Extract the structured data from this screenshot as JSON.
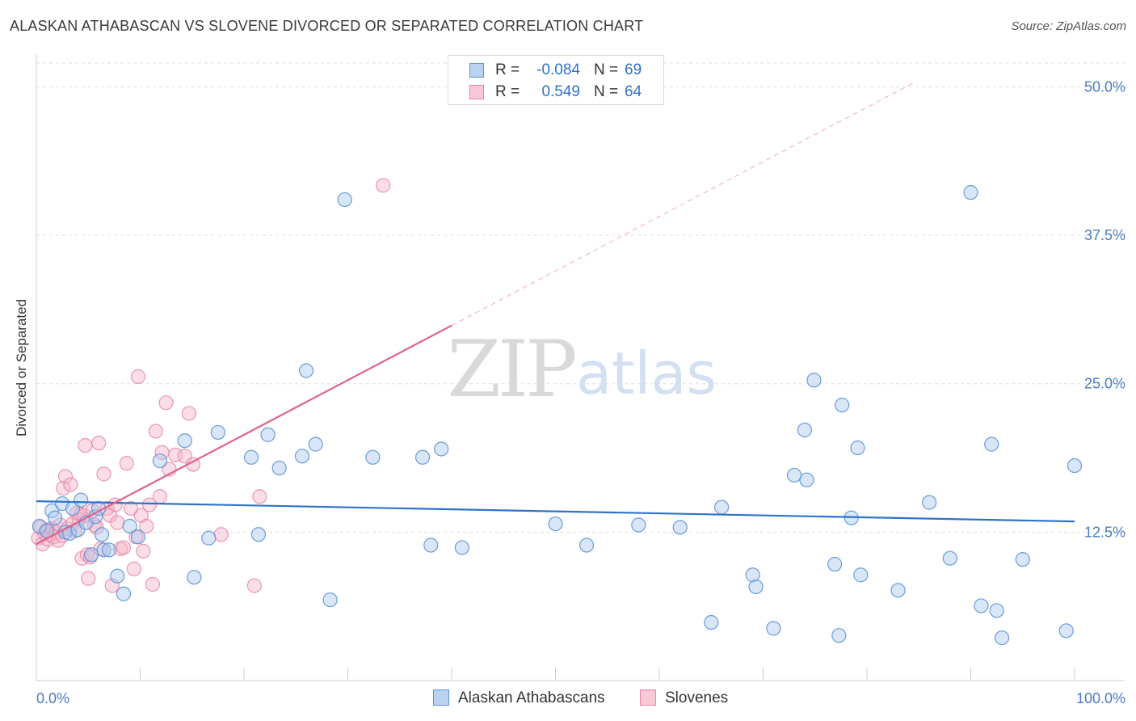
{
  "header": {
    "title": "ALASKAN ATHABASCAN VS SLOVENE DIVORCED OR SEPARATED CORRELATION CHART",
    "source": "Source: ZipAtlas.com"
  },
  "watermark": {
    "zip": "ZIP",
    "atlas": "atlas"
  },
  "colors": {
    "blue_fill": "#a9c7ee",
    "blue_stroke": "#5b93d6",
    "blue_line": "#2f72c8",
    "pink_fill": "#f4b6c9",
    "pink_stroke": "#e886a6",
    "pink_line": "#e0628d",
    "tick_text": "#4a7cc4",
    "grid": "#dddddd"
  },
  "stats": {
    "rows": [
      {
        "series": "Alaskan Athabascans",
        "r_label": "R =",
        "r_value": "-0.084",
        "n_label": "N =",
        "n_value": "69"
      },
      {
        "series": "Slovenes",
        "r_label": "R =",
        "r_value": "0.549",
        "n_label": "N =",
        "n_value": "64"
      }
    ]
  },
  "legend": {
    "items": [
      "Alaskan Athabascans",
      "Slovenes"
    ]
  },
  "chart_data": {
    "type": "scatter",
    "title": "ALASKAN ATHABASCAN VS SLOVENE DIVORCED OR SEPARATED CORRELATION CHART",
    "xlabel": "",
    "ylabel": "Divorced or Separated",
    "xlim": [
      0,
      100
    ],
    "ylim": [
      0,
      52
    ],
    "x_tick_labels": [
      "0.0%",
      "100.0%"
    ],
    "y_ticks": [
      12.5,
      25.0,
      37.5,
      50.0
    ],
    "y_tick_labels": [
      "12.5%",
      "25.0%",
      "37.5%",
      "50.0%"
    ],
    "grid": true,
    "legend_position": "bottom-center",
    "series": [
      {
        "name": "Alaskan Athabascans",
        "color": "#a9c7ee",
        "trend": {
          "x": [
            0,
            100
          ],
          "y": [
            15.1,
            13.4
          ]
        },
        "points": [
          [
            0.3,
            13.0
          ],
          [
            1.0,
            12.6
          ],
          [
            1.5,
            14.3
          ],
          [
            1.8,
            13.7
          ],
          [
            2.5,
            14.9
          ],
          [
            2.8,
            12.5
          ],
          [
            3.2,
            12.4
          ],
          [
            3.5,
            14.5
          ],
          [
            4.0,
            12.7
          ],
          [
            4.3,
            15.2
          ],
          [
            4.8,
            13.3
          ],
          [
            5.3,
            10.6
          ],
          [
            5.7,
            13.8
          ],
          [
            6.0,
            14.5
          ],
          [
            6.3,
            12.3
          ],
          [
            6.5,
            11.0
          ],
          [
            7.0,
            11.0
          ],
          [
            7.8,
            8.8
          ],
          [
            8.4,
            7.3
          ],
          [
            9.0,
            13.0
          ],
          [
            9.8,
            12.1
          ],
          [
            11.9,
            18.5
          ],
          [
            14.3,
            20.2
          ],
          [
            15.2,
            8.7
          ],
          [
            16.6,
            12.0
          ],
          [
            17.5,
            20.9
          ],
          [
            20.7,
            18.8
          ],
          [
            21.4,
            12.3
          ],
          [
            22.3,
            20.7
          ],
          [
            23.4,
            17.9
          ],
          [
            25.6,
            18.9
          ],
          [
            26.0,
            26.1
          ],
          [
            26.9,
            19.9
          ],
          [
            28.3,
            6.8
          ],
          [
            29.7,
            40.5
          ],
          [
            32.4,
            18.8
          ],
          [
            37.2,
            18.8
          ],
          [
            38.0,
            11.4
          ],
          [
            39.0,
            19.5
          ],
          [
            41.0,
            11.2
          ],
          [
            50.0,
            13.2
          ],
          [
            53.0,
            11.4
          ],
          [
            58.0,
            13.1
          ],
          [
            62.0,
            12.9
          ],
          [
            65.0,
            4.9
          ],
          [
            66.0,
            14.6
          ],
          [
            69.0,
            8.9
          ],
          [
            69.3,
            7.9
          ],
          [
            71.0,
            4.4
          ],
          [
            73.0,
            17.3
          ],
          [
            74.0,
            21.1
          ],
          [
            74.2,
            16.9
          ],
          [
            74.9,
            25.3
          ],
          [
            76.9,
            9.8
          ],
          [
            77.3,
            3.8
          ],
          [
            77.6,
            23.2
          ],
          [
            78.5,
            13.7
          ],
          [
            79.1,
            19.6
          ],
          [
            79.4,
            8.9
          ],
          [
            83.0,
            7.6
          ],
          [
            86.0,
            15.0
          ],
          [
            88.0,
            10.3
          ],
          [
            90.0,
            41.1
          ],
          [
            91.0,
            6.3
          ],
          [
            92.0,
            19.9
          ],
          [
            92.5,
            5.9
          ],
          [
            93.0,
            3.6
          ],
          [
            95.0,
            10.2
          ],
          [
            99.2,
            4.2
          ],
          [
            100,
            18.1
          ]
        ]
      },
      {
        "name": "Slovenes",
        "color": "#f4b6c9",
        "trend": {
          "x": [
            0,
            40
          ],
          "y": [
            11.5,
            29.9
          ]
        },
        "trend_extension": {
          "x": [
            40,
            84.4
          ],
          "y": [
            29.9,
            50.3
          ]
        },
        "points": [
          [
            0.2,
            12.0
          ],
          [
            0.4,
            12.9
          ],
          [
            0.6,
            11.5
          ],
          [
            0.8,
            12.4
          ],
          [
            1.0,
            12.7
          ],
          [
            1.1,
            11.9
          ],
          [
            1.3,
            12.3
          ],
          [
            1.5,
            12.8
          ],
          [
            1.7,
            12.1
          ],
          [
            1.9,
            12.5
          ],
          [
            2.1,
            11.8
          ],
          [
            2.3,
            13.1
          ],
          [
            2.5,
            12.2
          ],
          [
            2.6,
            16.2
          ],
          [
            2.8,
            17.2
          ],
          [
            3.0,
            12.8
          ],
          [
            3.3,
            16.5
          ],
          [
            3.5,
            13.2
          ],
          [
            3.7,
            12.6
          ],
          [
            3.9,
            14.1
          ],
          [
            4.1,
            13.6
          ],
          [
            4.3,
            14.0
          ],
          [
            4.4,
            10.3
          ],
          [
            4.6,
            13.9
          ],
          [
            4.7,
            19.8
          ],
          [
            4.9,
            10.6
          ],
          [
            5.0,
            8.6
          ],
          [
            5.2,
            10.4
          ],
          [
            5.4,
            14.3
          ],
          [
            5.6,
            13.1
          ],
          [
            5.8,
            12.9
          ],
          [
            6.0,
            20.0
          ],
          [
            6.2,
            11.1
          ],
          [
            6.5,
            17.4
          ],
          [
            6.8,
            14.5
          ],
          [
            7.1,
            13.9
          ],
          [
            7.3,
            8.0
          ],
          [
            7.6,
            14.8
          ],
          [
            7.8,
            13.3
          ],
          [
            8.1,
            11.1
          ],
          [
            8.4,
            11.2
          ],
          [
            8.7,
            18.3
          ],
          [
            9.1,
            14.5
          ],
          [
            9.4,
            9.4
          ],
          [
            9.6,
            12.1
          ],
          [
            9.8,
            25.6
          ],
          [
            10.1,
            13.9
          ],
          [
            10.3,
            10.9
          ],
          [
            10.6,
            13.0
          ],
          [
            10.9,
            14.8
          ],
          [
            11.2,
            8.1
          ],
          [
            11.5,
            21.0
          ],
          [
            11.9,
            15.5
          ],
          [
            12.1,
            19.2
          ],
          [
            12.5,
            23.4
          ],
          [
            12.8,
            17.8
          ],
          [
            13.4,
            19.0
          ],
          [
            14.3,
            18.9
          ],
          [
            14.7,
            22.5
          ],
          [
            15.1,
            18.2
          ],
          [
            17.8,
            12.3
          ],
          [
            21.0,
            8.0
          ],
          [
            21.5,
            15.5
          ],
          [
            33.4,
            41.7
          ]
        ]
      }
    ]
  }
}
